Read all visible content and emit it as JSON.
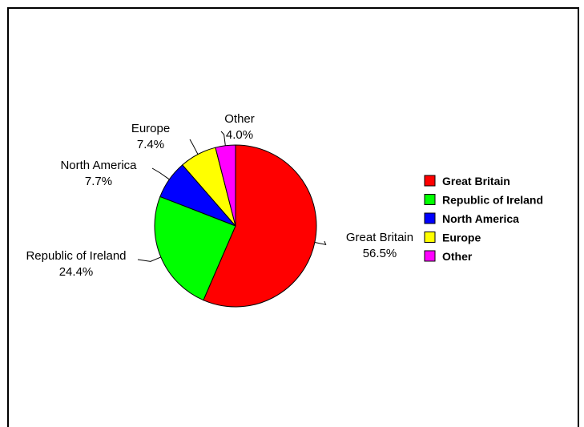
{
  "chart_data": {
    "type": "pie",
    "categories": [
      "Great Britain",
      "Republic of Ireland",
      "North America",
      "Europe",
      "Other"
    ],
    "values": [
      56.5,
      24.4,
      7.7,
      7.4,
      4.0
    ],
    "value_labels": [
      "56.5%",
      "24.4%",
      "7.7%",
      "7.4%",
      "4.0%"
    ],
    "colors": [
      "#ff0000",
      "#00ff00",
      "#0000ff",
      "#ffff00",
      "#ff00ff"
    ],
    "start": "12 o'clock",
    "direction": "clockwise",
    "legend": {
      "position": "right",
      "entries": [
        "Great Britain",
        "Republic of Ireland",
        "North America",
        "Europe",
        "Other"
      ]
    }
  }
}
